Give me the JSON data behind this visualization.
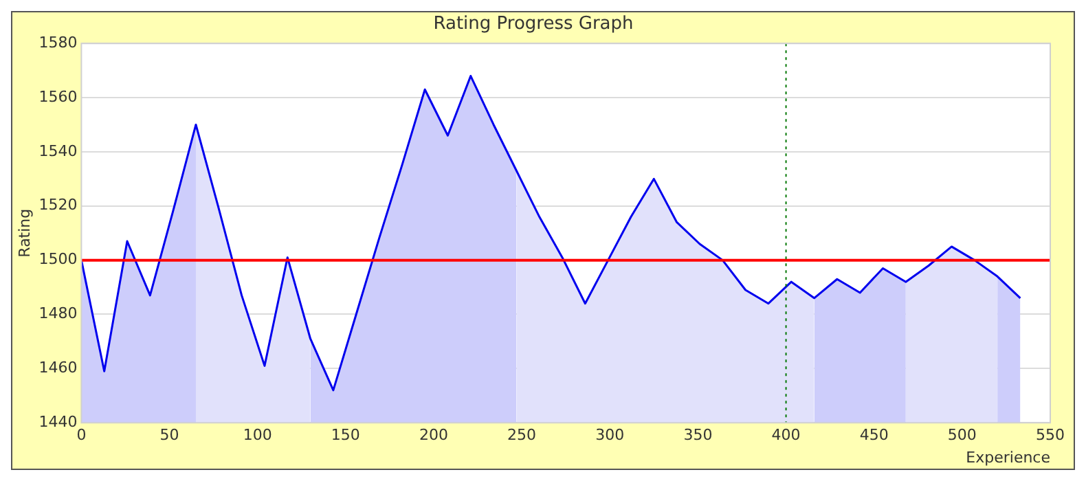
{
  "chart_data": {
    "type": "area",
    "title": "Rating Progress Graph",
    "xlabel": "Experience",
    "ylabel": "Rating",
    "x": [
      0,
      13,
      26,
      39,
      52,
      65,
      78,
      91,
      104,
      117,
      130,
      143,
      156,
      169,
      182,
      195,
      208,
      221,
      234,
      247,
      260,
      273,
      286,
      299,
      312,
      325,
      338,
      351,
      364,
      377,
      390,
      403,
      416,
      429,
      442,
      455,
      468,
      481,
      494,
      507,
      520,
      533
    ],
    "series": [
      {
        "color": "#cdcdfb",
        "x": [
          0,
          13,
          26,
          39,
          52,
          65
        ],
        "values": [
          1500,
          1459,
          1507,
          1487,
          1518,
          1550
        ]
      },
      {
        "color": "#e1e1fb",
        "x": [
          65,
          78,
          91,
          104,
          117,
          130
        ],
        "values": [
          1550,
          1519,
          1487,
          1461,
          1501,
          1471
        ]
      },
      {
        "color": "#cdcdfb",
        "x": [
          130,
          143,
          156,
          169,
          182,
          195,
          208,
          221,
          234,
          247
        ],
        "values": [
          1471,
          1452,
          1480,
          1508,
          1535,
          1563,
          1546,
          1568,
          1550,
          1533
        ]
      },
      {
        "color": "#e1e1fb",
        "x": [
          247,
          260,
          273,
          286,
          299,
          312,
          325,
          338,
          351,
          364,
          377,
          390,
          403,
          416
        ],
        "values": [
          1533,
          1516,
          1501,
          1484,
          1500,
          1516,
          1530,
          1514,
          1506,
          1500,
          1489,
          1484,
          1492,
          1486
        ]
      },
      {
        "color": "#cdcdfb",
        "x": [
          416,
          429,
          442,
          455,
          468
        ],
        "values": [
          1486,
          1493,
          1488,
          1497,
          1492
        ]
      },
      {
        "color": "#e1e1fb",
        "x": [
          468,
          481,
          494,
          507,
          520
        ],
        "values": [
          1492,
          1498,
          1505,
          1500,
          1494
        ]
      },
      {
        "color": "#cdcdfb",
        "x": [
          520,
          533
        ],
        "values": [
          1494,
          1486
        ]
      },
      {
        "type": "line",
        "color": "#0000ee",
        "values": [
          1500,
          1459,
          1507,
          1487,
          1518,
          1550,
          1519,
          1487,
          1461,
          1501,
          1471,
          1452,
          1480,
          1508,
          1535,
          1563,
          1546,
          1568,
          1550,
          1533,
          1516,
          1501,
          1484,
          1500,
          1516,
          1530,
          1514,
          1506,
          1500,
          1489,
          1484,
          1492,
          1486,
          1493,
          1488,
          1497,
          1492,
          1498,
          1505,
          1500,
          1494,
          1486
        ]
      }
    ],
    "xlim": [
      0,
      550
    ],
    "xticks": [
      0,
      50,
      100,
      150,
      200,
      250,
      300,
      350,
      400,
      450,
      500,
      550
    ],
    "ylim": [
      1440,
      1580
    ],
    "yticks": [
      1440,
      1460,
      1480,
      1500,
      1520,
      1540,
      1560,
      1580
    ],
    "grid": "y",
    "legend": false,
    "marker": "none",
    "line_style": "solid",
    "ref_lines": [
      {
        "axis": "y",
        "value": 1500,
        "color": "#ff0000",
        "line_style": "solid"
      },
      {
        "axis": "x",
        "value": 400,
        "color": "#007700",
        "line_style": "dotted"
      }
    ]
  }
}
